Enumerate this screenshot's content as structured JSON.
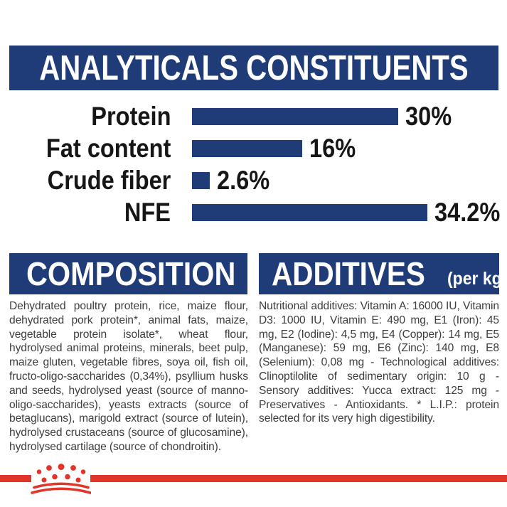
{
  "page": {
    "title_panel": "pet food analytical constituents label",
    "colors": {
      "navy": "#1f3b78",
      "red": "#e23529",
      "text": "#161616",
      "paragraph": "#3d3d3d",
      "background": "#ffffff"
    }
  },
  "header": {
    "title": "ANALYTICALS CONSTITUENTS"
  },
  "chart_data": {
    "type": "bar",
    "orientation": "horizontal",
    "title": "ANALYTICALS CONSTITUENTS",
    "categories": [
      "Protein",
      "Fat content",
      "Crude fiber",
      "NFE"
    ],
    "values": [
      30,
      16,
      2.6,
      34.2
    ],
    "value_labels": [
      "30%",
      "16%",
      "2.6%",
      "34.2%"
    ],
    "unit": "%",
    "xlim": [
      0,
      36
    ],
    "grid": false,
    "legend": false,
    "bar_color": "#1f3b78",
    "label_color": "#161616"
  },
  "composition": {
    "title": "COMPOSITION",
    "body": "Dehydrated poultry protein, rice, maize flour, dehydrated pork protein*, animal fats, maize, vegetable protein isolate*, wheat flour, hydrolysed animal proteins, minerals, beet pulp, maize gluten, vegetable fibres, soya oil, fish oil, fructo-oligo-saccharides (0,34%), psyllium husks and seeds, hydrolysed yeast (source of manno-oligo-saccharides), yeasts extracts (source of betaglucans), marigold extract (source of lutein), hydrolysed crustaceans (source of glucosamine), hydrolysed cartilage (source of chondroitin)."
  },
  "additives": {
    "title": "ADDITIVES",
    "subtitle": "(per kg)",
    "body": "Nutritional additives: Vitamin A: 16000 IU, Vitamin D3: 1000 IU, Vitamin E: 490 mg, E1 (Iron): 45 mg, E2 (Iodine): 4,5 mg, E4 (Copper): 14 mg, E5 (Manganese): 59 mg, E6 (Zinc): 140 mg, E8 (Selenium): 0,08 mg - Technological additives: Clinoptilolite of sedimentary origin: 10 g - Sensory additives: Yucca extract: 125 mg - Preservatives - Antioxidants. * L.I.P.: protein selected for its very high digestibility."
  },
  "footer": {
    "logo": "royal-canin-crown-icon",
    "accent_color": "#e23529"
  }
}
